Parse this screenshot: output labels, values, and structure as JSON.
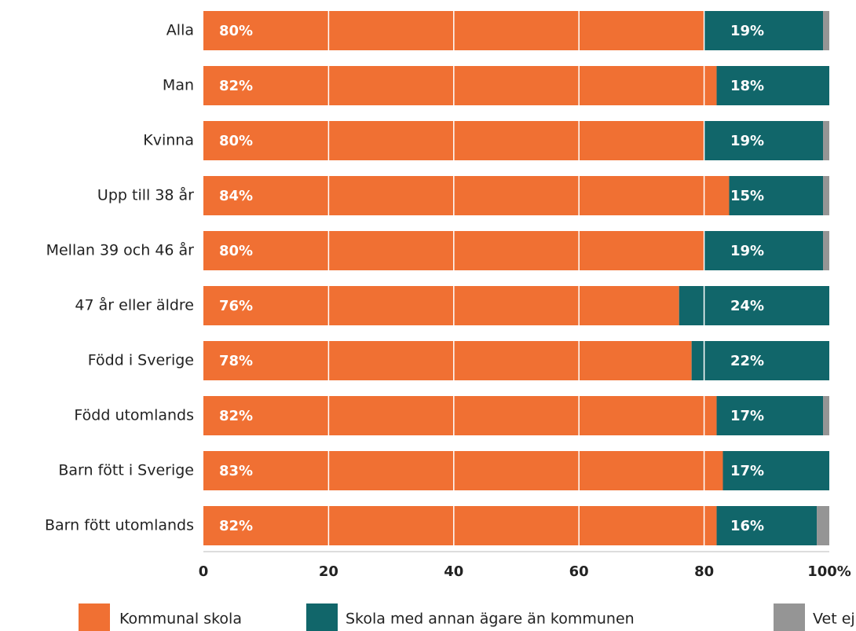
{
  "chart_data": {
    "type": "stacked-barh",
    "categories": [
      "Alla",
      "Man",
      "Kvinna",
      "Upp till 38 år",
      "Mellan 39 och 46 år",
      "47 år eller äldre",
      "Född i Sverige",
      "Född utomlands",
      "Barn fött i Sverige",
      "Barn fött utomlands"
    ],
    "series": [
      {
        "name": "Kommunal skola",
        "color": "#f07033",
        "values": [
          80,
          82,
          80,
          84,
          80,
          76,
          78,
          82,
          83,
          82
        ],
        "value_labels": [
          "80%",
          "82%",
          "80%",
          "84%",
          "80%",
          "76%",
          "78%",
          "82%",
          "83%",
          "82%"
        ]
      },
      {
        "name": "Skola med annan ägare än kommunen",
        "color": "#11666a",
        "values": [
          19,
          18,
          19,
          15,
          19,
          24,
          22,
          17,
          17,
          16
        ],
        "value_labels": [
          "19%",
          "18%",
          "19%",
          "15%",
          "19%",
          "24%",
          "22%",
          "17%",
          "17%",
          "16%"
        ]
      },
      {
        "name": "Vet ej",
        "color": "#959595",
        "values": [
          1,
          0,
          1,
          1,
          1,
          0,
          0,
          1,
          0,
          2
        ]
      }
    ],
    "xlim": [
      0,
      100
    ],
    "xticks": [
      0,
      20,
      40,
      60,
      80,
      {
        "value": 100,
        "label": "100%"
      }
    ],
    "grid": true
  }
}
